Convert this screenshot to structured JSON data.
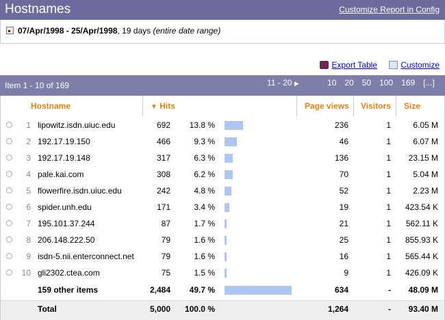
{
  "header": {
    "title": "Hostnames",
    "config_link": "Customize Report in Config"
  },
  "date_range": {
    "range": "07/Apr/1998 - 25/Apr/1998",
    "days": ", 19 days",
    "note": "(entire date range)"
  },
  "toolbar": {
    "export": "Export Table",
    "customize": "Customize"
  },
  "pager": {
    "items": "Item 1 - 10 of 169",
    "next": "11 - 20",
    "sizes": [
      "10",
      "20",
      "50",
      "100",
      "169",
      "[...]"
    ]
  },
  "columns": {
    "hostname": "Hostname",
    "hits": "Hits",
    "page_views": "Page views",
    "visitors": "Visitors",
    "size": "Size"
  },
  "rows": [
    {
      "rank": "1",
      "host": "lipowitz.isdn.uiuc.edu",
      "hits": "692",
      "pct": "13.8 %",
      "share": 13.8,
      "pv": "236",
      "vis": "1",
      "size": "6.05 M"
    },
    {
      "rank": "2",
      "host": "192.17.19.150",
      "hits": "466",
      "pct": "9.3 %",
      "share": 9.3,
      "pv": "46",
      "vis": "1",
      "size": "6.07 M"
    },
    {
      "rank": "3",
      "host": "192.17.19.148",
      "hits": "317",
      "pct": "6.3 %",
      "share": 6.3,
      "pv": "136",
      "vis": "1",
      "size": "23.15 M"
    },
    {
      "rank": "4",
      "host": "pale.kai.com",
      "hits": "308",
      "pct": "6.2 %",
      "share": 6.2,
      "pv": "70",
      "vis": "1",
      "size": "5.04 M"
    },
    {
      "rank": "5",
      "host": "flowerfire.isdn.uiuc.edu",
      "hits": "242",
      "pct": "4.8 %",
      "share": 4.8,
      "pv": "52",
      "vis": "1",
      "size": "2.23 M"
    },
    {
      "rank": "6",
      "host": "spider.unh.edu",
      "hits": "171",
      "pct": "3.4 %",
      "share": 3.4,
      "pv": "19",
      "vis": "1",
      "size": "423.54 K"
    },
    {
      "rank": "7",
      "host": "195.101.37.244",
      "hits": "87",
      "pct": "1.7 %",
      "share": 1.7,
      "pv": "21",
      "vis": "1",
      "size": "562.11 K"
    },
    {
      "rank": "8",
      "host": "206.148.222.50",
      "hits": "79",
      "pct": "1.6 %",
      "share": 1.6,
      "pv": "25",
      "vis": "1",
      "size": "855.93 K"
    },
    {
      "rank": "9",
      "host": "isdn-5.nii.enterconnect.net",
      "hits": "79",
      "pct": "1.6 %",
      "share": 1.6,
      "pv": "16",
      "vis": "1",
      "size": "565.44 K"
    },
    {
      "rank": "10",
      "host": "gli2302.ctea.com",
      "hits": "75",
      "pct": "1.5 %",
      "share": 1.5,
      "pv": "9",
      "vis": "1",
      "size": "426.09 K"
    }
  ],
  "other": {
    "host": "159 other items",
    "hits": "2,484",
    "pct": "49.7 %",
    "share": 49.7,
    "pv": "634",
    "vis": "-",
    "size": "48.09 M"
  },
  "total": {
    "host": "Total",
    "hits": "5,000",
    "pct": "100.0 %",
    "pv": "1,264",
    "vis": "-",
    "size": "93.40 M"
  },
  "colors": {
    "header": "#6c6c9c",
    "bar": "#7e7fa8",
    "accent": "#e08010",
    "hit_bar": "#aec6f2"
  }
}
